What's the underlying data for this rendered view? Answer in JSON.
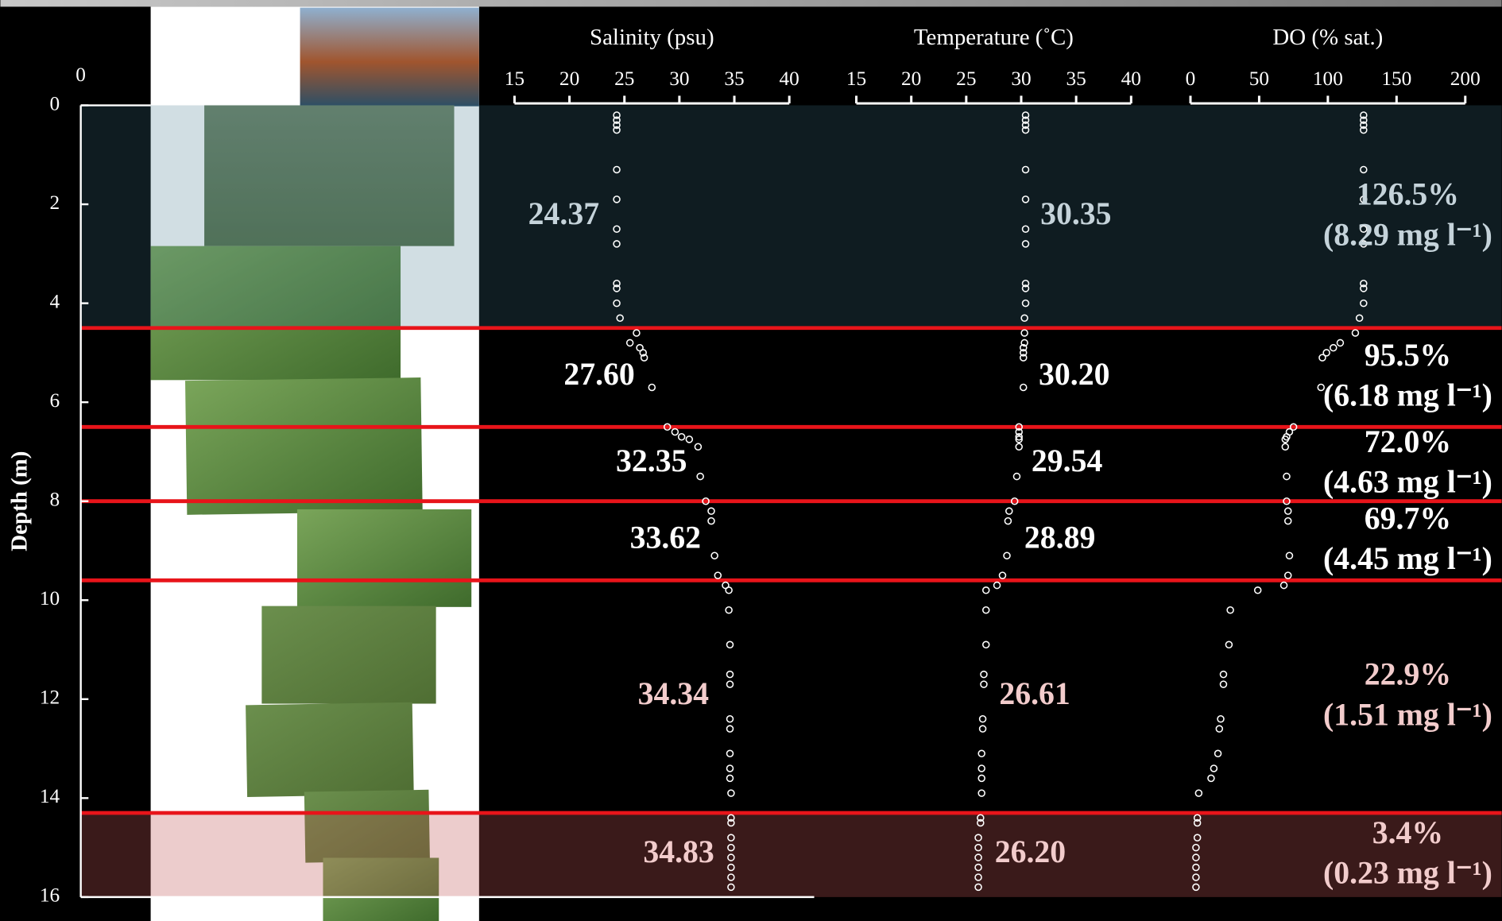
{
  "chart_data": [
    {
      "type": "scatter",
      "title": "Salinity (psu)",
      "ylabel": "Depth (m)",
      "ylim": [
        0,
        16
      ],
      "yticks": [
        0,
        2,
        4,
        6,
        8,
        10,
        12,
        14,
        16
      ],
      "xlim": [
        15,
        40
      ],
      "xticks": [
        15,
        20,
        25,
        30,
        35,
        40
      ],
      "color": "#ffffff",
      "y": [
        0.2,
        0.3,
        0.4,
        0.5,
        1.3,
        1.9,
        2.5,
        2.8,
        3.6,
        3.7,
        4.0,
        4.3,
        4.6,
        4.8,
        4.9,
        5.0,
        5.1,
        5.7,
        6.5,
        6.6,
        6.7,
        6.75,
        6.9,
        7.5,
        8.0,
        8.2,
        8.4,
        9.1,
        9.5,
        9.7,
        9.8,
        10.2,
        10.9,
        11.5,
        11.7,
        12.4,
        12.6,
        13.1,
        13.4,
        13.6,
        13.9,
        14.4,
        14.5,
        14.8,
        15.0,
        15.2,
        15.4,
        15.6,
        15.8
      ],
      "x": [
        24.3,
        24.3,
        24.3,
        24.3,
        24.3,
        24.3,
        24.3,
        24.3,
        24.3,
        24.3,
        24.3,
        24.6,
        26.1,
        25.5,
        26.4,
        26.7,
        26.8,
        27.5,
        28.9,
        29.6,
        30.2,
        30.9,
        31.7,
        31.9,
        32.4,
        32.9,
        32.9,
        33.2,
        33.5,
        34.2,
        34.5,
        34.5,
        34.6,
        34.6,
        34.6,
        34.6,
        34.6,
        34.6,
        34.6,
        34.6,
        34.7,
        34.7,
        34.7,
        34.7,
        34.7,
        34.7,
        34.7,
        34.7,
        34.7
      ],
      "layer_labels": [
        "24.37",
        "27.60",
        "32.35",
        "33.62",
        "34.34",
        "34.83"
      ]
    },
    {
      "type": "scatter",
      "title": "Temperature (˚C)",
      "ylim": [
        0,
        16
      ],
      "xlim": [
        15,
        40
      ],
      "xticks": [
        15,
        20,
        25,
        30,
        35,
        40
      ],
      "color": "#ffffff",
      "y": [
        0.2,
        0.3,
        0.4,
        0.5,
        1.3,
        1.9,
        2.5,
        2.8,
        3.6,
        3.7,
        4.0,
        4.3,
        4.6,
        4.8,
        4.9,
        5.0,
        5.1,
        5.7,
        6.5,
        6.6,
        6.7,
        6.75,
        6.9,
        7.5,
        8.0,
        8.2,
        8.4,
        9.1,
        9.5,
        9.7,
        9.8,
        10.2,
        10.9,
        11.5,
        11.7,
        12.4,
        12.6,
        13.1,
        13.4,
        13.6,
        13.9,
        14.4,
        14.5,
        14.8,
        15.0,
        15.2,
        15.4,
        15.6,
        15.8
      ],
      "x": [
        30.4,
        30.4,
        30.4,
        30.4,
        30.4,
        30.4,
        30.4,
        30.4,
        30.4,
        30.4,
        30.4,
        30.3,
        30.3,
        30.3,
        30.2,
        30.2,
        30.2,
        30.2,
        29.8,
        29.8,
        29.8,
        29.8,
        29.8,
        29.6,
        29.4,
        28.9,
        28.8,
        28.7,
        28.3,
        27.8,
        26.8,
        26.8,
        26.8,
        26.6,
        26.6,
        26.5,
        26.5,
        26.4,
        26.4,
        26.4,
        26.4,
        26.3,
        26.3,
        26.1,
        26.1,
        26.1,
        26.1,
        26.1,
        26.1
      ],
      "layer_labels": [
        "30.35",
        "30.20",
        "29.54",
        "28.89",
        "26.61",
        "26.20"
      ]
    },
    {
      "type": "scatter",
      "title": "DO (% sat.)",
      "ylim": [
        0,
        16
      ],
      "xlim": [
        0,
        200
      ],
      "xticks": [
        0,
        50,
        100,
        150,
        200
      ],
      "color": "#ffffff",
      "y": [
        0.2,
        0.3,
        0.4,
        0.5,
        1.3,
        1.9,
        2.5,
        2.8,
        3.6,
        3.7,
        4.0,
        4.3,
        4.6,
        4.8,
        4.9,
        5.0,
        5.1,
        5.7,
        6.5,
        6.6,
        6.7,
        6.75,
        6.9,
        7.5,
        8.0,
        8.2,
        8.4,
        9.1,
        9.5,
        9.7,
        9.8,
        10.2,
        10.9,
        11.5,
        11.7,
        12.4,
        12.6,
        13.1,
        13.4,
        13.6,
        13.9,
        14.4,
        14.5,
        14.8,
        15.0,
        15.2,
        15.4,
        15.6,
        15.8
      ],
      "x": [
        126,
        126,
        126,
        126,
        126,
        126,
        126,
        126,
        126,
        126,
        126,
        123,
        120,
        109,
        104,
        99,
        96,
        95,
        75,
        72,
        70,
        69,
        69,
        70,
        70,
        71,
        71,
        72,
        71,
        68,
        49,
        29,
        28,
        24,
        24,
        22,
        21,
        20,
        17,
        15,
        6,
        5,
        5,
        5,
        4,
        4,
        4,
        4,
        4
      ],
      "layer_labels": [
        "126.5%",
        "95.5%",
        "72.0%",
        "69.7%",
        "22.9%",
        "3.4%"
      ],
      "layer_sublabels": [
        "(8.29 mg l⁻¹)",
        "(6.18 mg l⁻¹)",
        "(4.63 mg l⁻¹)",
        "(4.45 mg l⁻¹)",
        "(1.51 mg l⁻¹)",
        "(0.23 mg l⁻¹)"
      ]
    }
  ],
  "layer_boundaries": [
    4.5,
    6.5,
    8.0,
    9.6,
    14.3
  ],
  "photo_axis_label": "0"
}
